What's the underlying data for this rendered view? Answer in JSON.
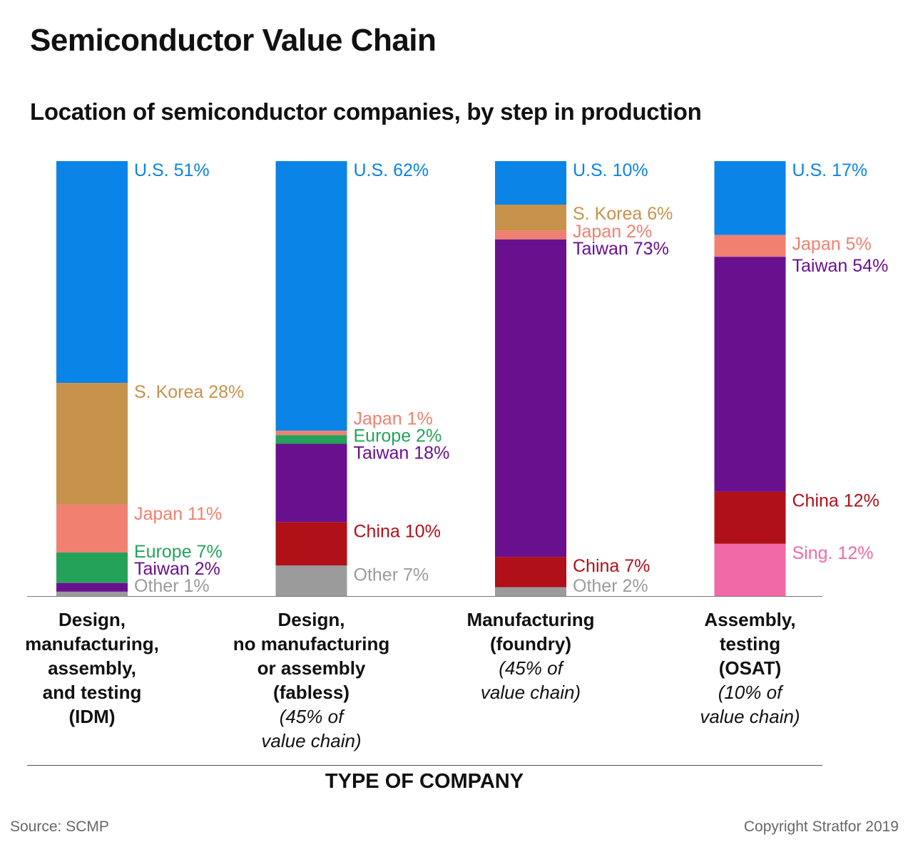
{
  "title": "Semiconductor Value Chain",
  "subtitle": "Location of semiconductor companies, by step in production",
  "source": "Source: SCMP",
  "copyright": "Copyright Stratfor 2019",
  "colors": {
    "U.S.": "#0a84e6",
    "S. Korea": "#c6924c",
    "Japan": "#f08070",
    "Europe": "#25a25a",
    "Taiwan": "#69108f",
    "China": "#b01018",
    "Sing.": "#f06aa8",
    "Other": "#9b9b9b"
  },
  "chart_data": {
    "type": "bar",
    "stacked": true,
    "normalized_percent": true,
    "xlabel": "TYPE OF COMPANY",
    "ylabel": "",
    "ylim": [
      0,
      100
    ],
    "grid": false,
    "legend": "none (direct labels)",
    "categories": [
      {
        "name": "Design,\nmanufacturing,\nassembly,\nand testing\n(IDM)",
        "note": "",
        "segments": [
          {
            "label": "U.S.",
            "value": 51,
            "text": "U.S. 51%"
          },
          {
            "label": "S. Korea",
            "value": 28,
            "text": "S. Korea 28%"
          },
          {
            "label": "Japan",
            "value": 11,
            "text": "Japan 11%"
          },
          {
            "label": "Europe",
            "value": 7,
            "text": "Europe 7%"
          },
          {
            "label": "Taiwan",
            "value": 2,
            "text": "Taiwan 2%"
          },
          {
            "label": "Other",
            "value": 1,
            "text": "Other 1%"
          }
        ]
      },
      {
        "name": "Design,\nno manufacturing\nor assembly\n(fabless)",
        "note": "(45% of\nvalue chain)",
        "segments": [
          {
            "label": "U.S.",
            "value": 62,
            "text": "U.S. 62%"
          },
          {
            "label": "Japan",
            "value": 1,
            "text": "Japan 1%"
          },
          {
            "label": "Europe",
            "value": 2,
            "text": "Europe 2%"
          },
          {
            "label": "Taiwan",
            "value": 18,
            "text": "Taiwan 18%"
          },
          {
            "label": "China",
            "value": 10,
            "text": "China 10%"
          },
          {
            "label": "Other",
            "value": 7,
            "text": "Other 7%"
          }
        ]
      },
      {
        "name": "Manufacturing\n(foundry)",
        "note": "(45% of\nvalue chain)",
        "segments": [
          {
            "label": "U.S.",
            "value": 10,
            "text": "U.S. 10%"
          },
          {
            "label": "S. Korea",
            "value": 6,
            "text": "S. Korea 6%"
          },
          {
            "label": "Japan",
            "value": 2,
            "text": "Japan 2%"
          },
          {
            "label": "Taiwan",
            "value": 73,
            "text": "Taiwan 73%"
          },
          {
            "label": "China",
            "value": 7,
            "text": "China 7%"
          },
          {
            "label": "Other",
            "value": 2,
            "text": "Other 2%"
          }
        ]
      },
      {
        "name": "Assembly,\ntesting\n(OSAT)",
        "note": "(10% of\nvalue chain)",
        "segments": [
          {
            "label": "U.S.",
            "value": 17,
            "text": "U.S. 17%"
          },
          {
            "label": "Japan",
            "value": 5,
            "text": "Japan 5%"
          },
          {
            "label": "Taiwan",
            "value": 54,
            "text": "Taiwan 54%"
          },
          {
            "label": "China",
            "value": 12,
            "text": "China 12%"
          },
          {
            "label": "Sing.",
            "value": 12,
            "text": "Sing. 12%"
          }
        ]
      }
    ]
  }
}
